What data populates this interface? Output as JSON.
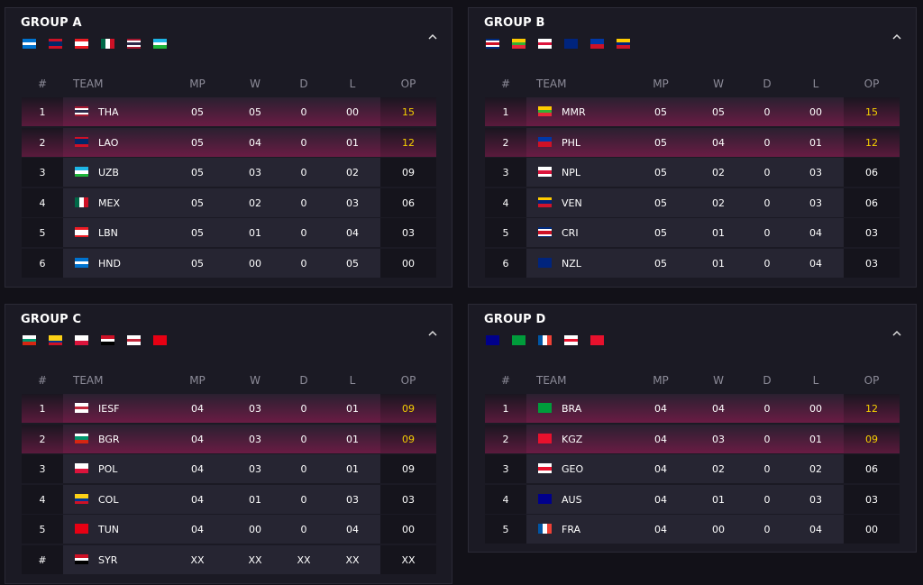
{
  "groups": [
    {
      "title": "GROUP A",
      "headers": [
        "#",
        "TEAM",
        "MP",
        "W",
        "D",
        "L",
        "OP"
      ],
      "rows": [
        [
          "1",
          "THA",
          "05",
          "05",
          "0",
          "00",
          "15"
        ],
        [
          "2",
          "LAO",
          "05",
          "04",
          "0",
          "01",
          "12"
        ],
        [
          "3",
          "UZB",
          "05",
          "03",
          "0",
          "02",
          "09"
        ],
        [
          "4",
          "MEX",
          "05",
          "02",
          "0",
          "03",
          "06"
        ],
        [
          "5",
          "LBN",
          "05",
          "01",
          "0",
          "04",
          "03"
        ],
        [
          "6",
          "HND",
          "05",
          "00",
          "0",
          "05",
          "00"
        ]
      ]
    },
    {
      "title": "GROUP B",
      "headers": [
        "#",
        "TEAM",
        "MP",
        "W",
        "D",
        "L",
        "OP"
      ],
      "rows": [
        [
          "1",
          "MMR",
          "05",
          "05",
          "0",
          "00",
          "15"
        ],
        [
          "2",
          "PHL",
          "05",
          "04",
          "0",
          "01",
          "12"
        ],
        [
          "3",
          "NPL",
          "05",
          "02",
          "0",
          "03",
          "06"
        ],
        [
          "4",
          "VEN",
          "05",
          "02",
          "0",
          "03",
          "06"
        ],
        [
          "5",
          "CRI",
          "05",
          "01",
          "0",
          "04",
          "03"
        ],
        [
          "6",
          "NZL",
          "05",
          "01",
          "0",
          "04",
          "03"
        ]
      ]
    },
    {
      "title": "GROUP C",
      "headers": [
        "#",
        "TEAM",
        "MP",
        "W",
        "D",
        "L",
        "OP"
      ],
      "rows": [
        [
          "1",
          "IESF",
          "04",
          "03",
          "0",
          "01",
          "09"
        ],
        [
          "2",
          "BGR",
          "04",
          "03",
          "0",
          "01",
          "09"
        ],
        [
          "3",
          "POL",
          "04",
          "03",
          "0",
          "01",
          "09"
        ],
        [
          "4",
          "COL",
          "04",
          "01",
          "0",
          "03",
          "03"
        ],
        [
          "5",
          "TUN",
          "04",
          "00",
          "0",
          "04",
          "00"
        ],
        [
          "#",
          "SYR",
          "XX",
          "XX",
          "XX",
          "XX",
          "XX"
        ]
      ]
    },
    {
      "title": "GROUP D",
      "headers": [
        "#",
        "TEAM",
        "MP",
        "W",
        "D",
        "L",
        "OP"
      ],
      "rows": [
        [
          "1",
          "BRA",
          "04",
          "04",
          "0",
          "00",
          "12"
        ],
        [
          "2",
          "KGZ",
          "04",
          "03",
          "0",
          "01",
          "09"
        ],
        [
          "3",
          "GEO",
          "04",
          "02",
          "0",
          "02",
          "06"
        ],
        [
          "4",
          "AUS",
          "04",
          "01",
          "0",
          "03",
          "03"
        ],
        [
          "5",
          "FRA",
          "04",
          "00",
          "0",
          "04",
          "00"
        ]
      ]
    }
  ]
}
